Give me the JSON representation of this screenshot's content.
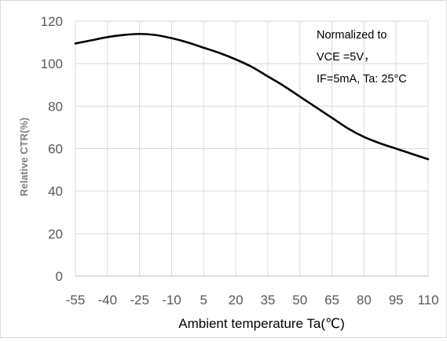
{
  "chart_data": {
    "type": "line",
    "title": "",
    "xlabel": "Ambient temperature Ta(℃)",
    "ylabel": "Relative CTR(%)",
    "x_ticks": [
      "-55",
      "-40",
      "-25",
      "-10",
      "5",
      "20",
      "35",
      "50",
      "65",
      "80",
      "95",
      "110"
    ],
    "y_ticks": [
      "0",
      "20",
      "40",
      "60",
      "80",
      "100",
      "120"
    ],
    "xlim": [
      -55,
      110
    ],
    "ylim": [
      0,
      120
    ],
    "grid": {
      "vertical": true,
      "horizontal": true
    },
    "series": [
      {
        "x": [
          -55,
          -47.5,
          -40,
          -32.5,
          -25,
          -17.5,
          -10,
          -2.5,
          5,
          12.5,
          20,
          27.5,
          35,
          42.5,
          50,
          57.5,
          65,
          72.5,
          80,
          87.5,
          95,
          102.5,
          110
        ],
        "values": [
          109.5,
          111,
          112.5,
          113.5,
          114,
          113.5,
          112,
          110,
          107.5,
          105,
          102,
          98.5,
          94,
          89.5,
          84.5,
          79.5,
          74.5,
          69.5,
          65.5,
          62.5,
          60,
          57.5,
          55
        ],
        "color": "#000000"
      }
    ],
    "annotation": {
      "lines": [
        "Normalized to",
        "VCE =5V，",
        "IF=5mA, Ta: 25°C"
      ]
    }
  }
}
